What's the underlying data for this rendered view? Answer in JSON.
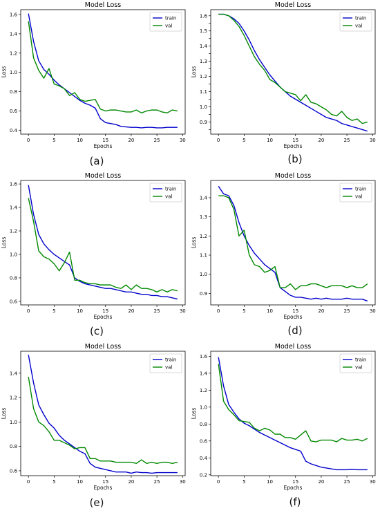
{
  "figure": {
    "captions": [
      "(a)",
      "(b)",
      "(c)",
      "(d)",
      "(e)",
      "(f)"
    ]
  },
  "chart_data": [
    {
      "type": "line",
      "title": "Model Loss",
      "xlabel": "Epochs",
      "ylabel": "Loss",
      "xlim": [
        -1.5,
        30.5
      ],
      "ylim": [
        0.36,
        1.65
      ],
      "xticks": [
        0,
        5,
        10,
        15,
        20,
        25,
        30
      ],
      "yticks": [
        0.4,
        0.6,
        0.8,
        1.0,
        1.2,
        1.4,
        1.6
      ],
      "ytick_labels": [
        "0.4",
        "0.6",
        "0.8",
        "1.0",
        "1.2",
        "1.4",
        "1.6"
      ],
      "legend": "top-right",
      "series": [
        {
          "name": "train",
          "color": "#0000cc",
          "y": [
            1.61,
            1.32,
            1.12,
            1.03,
            0.98,
            0.92,
            0.87,
            0.83,
            0.79,
            0.75,
            0.71,
            0.68,
            0.66,
            0.63,
            0.52,
            0.48,
            0.47,
            0.46,
            0.44,
            0.435,
            0.43,
            0.43,
            0.425,
            0.43,
            0.43,
            0.425,
            0.425,
            0.43,
            0.43,
            0.43
          ]
        },
        {
          "name": "val",
          "color": "#008800",
          "y": [
            1.53,
            1.15,
            1.02,
            0.94,
            1.04,
            0.88,
            0.86,
            0.83,
            0.76,
            0.79,
            0.72,
            0.7,
            0.71,
            0.72,
            0.62,
            0.6,
            0.61,
            0.61,
            0.6,
            0.59,
            0.59,
            0.61,
            0.58,
            0.6,
            0.61,
            0.61,
            0.59,
            0.58,
            0.61,
            0.6
          ]
        }
      ]
    },
    {
      "type": "line",
      "title": "Model Loss",
      "xlabel": "Epochs",
      "ylabel": "Loss",
      "xlim": [
        -1.5,
        30.5
      ],
      "ylim": [
        0.82,
        1.64
      ],
      "xticks": [
        0,
        5,
        10,
        15,
        20,
        25,
        30
      ],
      "yticks": [
        0.85,
        0.9,
        0.95,
        1.0,
        1.05,
        1.1,
        1.15,
        1.2,
        1.25,
        1.3,
        1.35,
        1.4,
        1.45,
        1.5,
        1.55,
        1.6
      ],
      "ytick_labels": [
        "",
        "0.9",
        "",
        "1.0",
        "",
        "1.1",
        "",
        "1.2",
        "",
        "1.3",
        "",
        "1.4",
        "",
        "1.5",
        "",
        "1.6"
      ],
      "legend": "top-right",
      "series": [
        {
          "name": "train",
          "color": "#0000cc",
          "y": [
            1.61,
            1.61,
            1.6,
            1.58,
            1.55,
            1.5,
            1.44,
            1.37,
            1.31,
            1.26,
            1.21,
            1.17,
            1.13,
            1.1,
            1.07,
            1.05,
            1.03,
            1.01,
            0.99,
            0.97,
            0.95,
            0.93,
            0.92,
            0.91,
            0.89,
            0.88,
            0.87,
            0.86,
            0.85,
            0.84
          ]
        },
        {
          "name": "val",
          "color": "#008800",
          "y": [
            1.61,
            1.61,
            1.6,
            1.57,
            1.53,
            1.47,
            1.4,
            1.33,
            1.28,
            1.24,
            1.18,
            1.16,
            1.13,
            1.1,
            1.09,
            1.08,
            1.04,
            1.08,
            1.03,
            1.02,
            1.0,
            0.98,
            0.95,
            0.94,
            0.97,
            0.93,
            0.91,
            0.92,
            0.89,
            0.9
          ]
        }
      ]
    },
    {
      "type": "line",
      "title": "Model Loss",
      "xlabel": "Epochs",
      "ylabel": "Loss",
      "xlim": [
        -1.5,
        30.5
      ],
      "ylim": [
        0.57,
        1.63
      ],
      "xticks": [
        0,
        5,
        10,
        15,
        20,
        25,
        30
      ],
      "yticks": [
        0.6,
        0.8,
        1.0,
        1.2,
        1.4,
        1.6
      ],
      "ytick_labels": [
        "0.6",
        "0.8",
        "1.0",
        "1.2",
        "1.4",
        "1.6"
      ],
      "legend": "top-right",
      "series": [
        {
          "name": "train",
          "color": "#0000cc",
          "y": [
            1.59,
            1.34,
            1.17,
            1.09,
            1.04,
            1.0,
            0.97,
            0.94,
            0.91,
            0.8,
            0.77,
            0.75,
            0.74,
            0.73,
            0.72,
            0.71,
            0.71,
            0.7,
            0.69,
            0.68,
            0.68,
            0.67,
            0.66,
            0.66,
            0.65,
            0.65,
            0.64,
            0.64,
            0.63,
            0.62
          ]
        },
        {
          "name": "val",
          "color": "#008800",
          "y": [
            1.48,
            1.28,
            1.03,
            0.98,
            0.96,
            0.92,
            0.86,
            0.93,
            1.02,
            0.78,
            0.78,
            0.76,
            0.75,
            0.75,
            0.74,
            0.74,
            0.74,
            0.72,
            0.71,
            0.74,
            0.7,
            0.74,
            0.71,
            0.71,
            0.7,
            0.68,
            0.7,
            0.68,
            0.7,
            0.69
          ]
        }
      ]
    },
    {
      "type": "line",
      "title": "Model Loss",
      "xlabel": "Epochs",
      "ylabel": "Loss",
      "xlim": [
        -1.5,
        30.5
      ],
      "ylim": [
        0.84,
        1.49
      ],
      "xticks": [
        0,
        5,
        10,
        15,
        20,
        25,
        30
      ],
      "yticks": [
        0.9,
        1.0,
        1.1,
        1.2,
        1.3,
        1.4
      ],
      "ytick_labels": [
        "0.9",
        "1.0",
        "1.1",
        "1.2",
        "1.3",
        "1.4"
      ],
      "legend": "top-right",
      "series": [
        {
          "name": "train",
          "color": "#0000cc",
          "y": [
            1.46,
            1.42,
            1.41,
            1.36,
            1.27,
            1.2,
            1.15,
            1.11,
            1.08,
            1.05,
            1.03,
            1.01,
            0.93,
            0.91,
            0.89,
            0.88,
            0.88,
            0.875,
            0.87,
            0.875,
            0.87,
            0.875,
            0.87,
            0.87,
            0.87,
            0.875,
            0.87,
            0.87,
            0.87,
            0.86
          ]
        },
        {
          "name": "val",
          "color": "#008800",
          "y": [
            1.41,
            1.41,
            1.4,
            1.34,
            1.2,
            1.23,
            1.1,
            1.05,
            1.04,
            1.01,
            1.02,
            1.04,
            0.93,
            0.93,
            0.95,
            0.92,
            0.94,
            0.94,
            0.95,
            0.95,
            0.94,
            0.93,
            0.94,
            0.94,
            0.94,
            0.93,
            0.94,
            0.93,
            0.93,
            0.95
          ]
        }
      ]
    },
    {
      "type": "line",
      "title": "Model Loss",
      "xlabel": "Epochs",
      "ylabel": "Loss",
      "xlim": [
        -1.5,
        30.5
      ],
      "ylim": [
        0.56,
        1.58
      ],
      "xticks": [
        0,
        5,
        10,
        15,
        20,
        25,
        30
      ],
      "yticks": [
        0.6,
        0.8,
        1.0,
        1.2,
        1.4
      ],
      "ytick_labels": [
        "0.6",
        "0.8",
        "1.0",
        "1.2",
        "1.4"
      ],
      "legend": "top-right",
      "series": [
        {
          "name": "train",
          "color": "#0000cc",
          "y": [
            1.55,
            1.32,
            1.14,
            1.06,
            0.99,
            0.95,
            0.89,
            0.85,
            0.82,
            0.79,
            0.76,
            0.74,
            0.66,
            0.63,
            0.62,
            0.61,
            0.6,
            0.59,
            0.59,
            0.59,
            0.58,
            0.59,
            0.585,
            0.585,
            0.58,
            0.585,
            0.585,
            0.585,
            0.585,
            0.585
          ]
        },
        {
          "name": "val",
          "color": "#008800",
          "y": [
            1.37,
            1.11,
            1.0,
            0.97,
            0.92,
            0.85,
            0.85,
            0.83,
            0.81,
            0.78,
            0.79,
            0.79,
            0.7,
            0.7,
            0.68,
            0.68,
            0.68,
            0.67,
            0.67,
            0.67,
            0.67,
            0.66,
            0.69,
            0.66,
            0.67,
            0.66,
            0.67,
            0.67,
            0.66,
            0.67
          ]
        }
      ]
    },
    {
      "type": "line",
      "title": "Model Loss",
      "xlabel": "Epochs",
      "ylabel": "Loss",
      "xlim": [
        -1.5,
        30.5
      ],
      "ylim": [
        0.19,
        1.66
      ],
      "xticks": [
        0,
        5,
        10,
        15,
        20,
        25,
        30
      ],
      "yticks": [
        0.2,
        0.4,
        0.6,
        0.8,
        1.0,
        1.2,
        1.4,
        1.6
      ],
      "ytick_labels": [
        "0.2",
        "0.4",
        "0.6",
        "0.8",
        "1.0",
        "1.2",
        "1.4",
        "1.6"
      ],
      "legend": "top-right",
      "series": [
        {
          "name": "train",
          "color": "#0000cc",
          "y": [
            1.59,
            1.25,
            1.03,
            0.94,
            0.86,
            0.81,
            0.78,
            0.74,
            0.7,
            0.67,
            0.64,
            0.61,
            0.58,
            0.55,
            0.52,
            0.5,
            0.48,
            0.36,
            0.33,
            0.31,
            0.29,
            0.28,
            0.27,
            0.26,
            0.26,
            0.26,
            0.265,
            0.26,
            0.26,
            0.26
          ]
        },
        {
          "name": "val",
          "color": "#008800",
          "y": [
            1.51,
            1.07,
            0.97,
            0.91,
            0.84,
            0.83,
            0.82,
            0.75,
            0.72,
            0.75,
            0.73,
            0.68,
            0.68,
            0.64,
            0.64,
            0.62,
            0.67,
            0.72,
            0.6,
            0.59,
            0.61,
            0.61,
            0.61,
            0.59,
            0.63,
            0.61,
            0.61,
            0.62,
            0.6,
            0.63
          ]
        }
      ]
    }
  ]
}
